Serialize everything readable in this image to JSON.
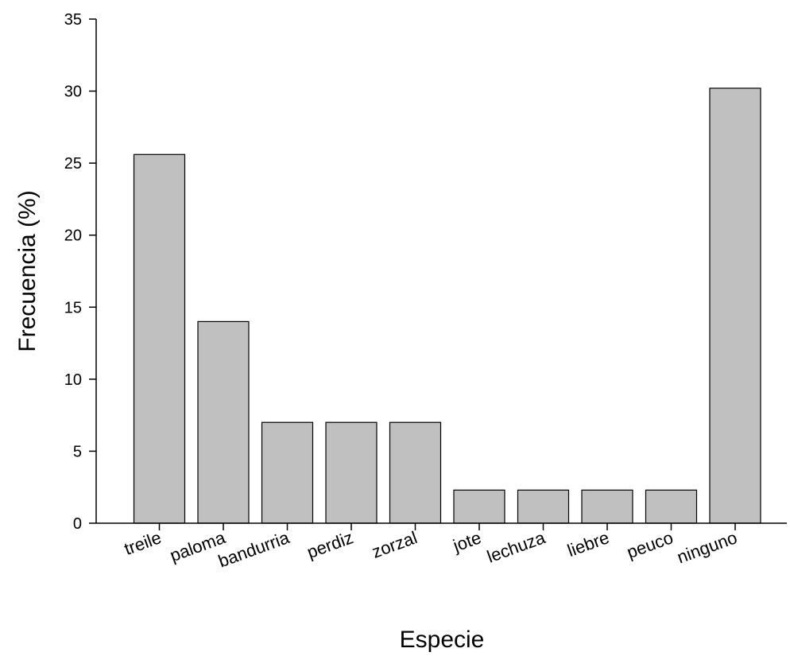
{
  "chart_data": {
    "type": "bar",
    "title": "",
    "xlabel": "Especie",
    "ylabel": "Frecuencia (%)",
    "categories": [
      "treile",
      "paloma",
      "bandurria",
      "perdiz",
      "zorzal",
      "jote",
      "lechuza",
      "liebre",
      "peuco",
      "ninguno"
    ],
    "values": [
      25.6,
      14.0,
      7.0,
      7.0,
      7.0,
      2.3,
      2.3,
      2.3,
      2.3,
      30.2
    ],
    "ylim": [
      0,
      35
    ],
    "yticks": [
      0,
      5,
      10,
      15,
      20,
      25,
      30,
      35
    ],
    "grid": false,
    "bar_color": "#c0c0c0",
    "edge_color": "#000000"
  }
}
